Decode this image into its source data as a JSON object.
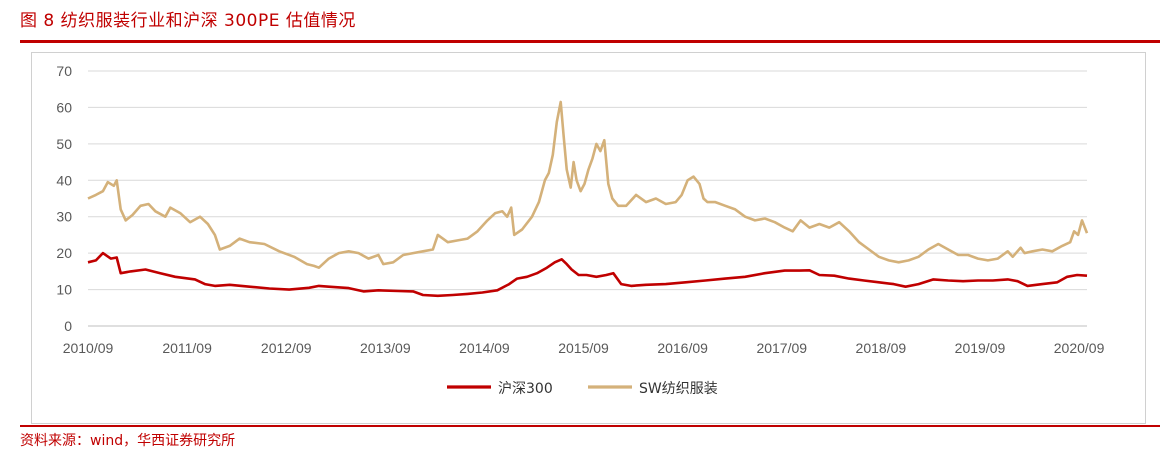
{
  "title": "图 8 纺织服装行业和沪深 300PE 估值情况",
  "source": "资料来源：wind，华西证券研究所",
  "colors": {
    "accent": "#c00000",
    "series_hs300": "#c00000",
    "series_sw": "#d4b17a",
    "grid": "#d9d9d9"
  },
  "chart_data": {
    "type": "line",
    "title": "",
    "xlabel": "",
    "ylabel": "",
    "ylim": [
      0,
      70
    ],
    "yticks": [
      0,
      10,
      20,
      30,
      40,
      50,
      60,
      70
    ],
    "xlim": [
      2010.67,
      2020.75
    ],
    "xtick_labels": [
      "2010/09",
      "2011/09",
      "2012/09",
      "2013/09",
      "2014/09",
      "2015/09",
      "2016/09",
      "2017/09",
      "2018/09",
      "2019/09",
      "2020/09"
    ],
    "xtick_values": [
      2010.67,
      2011.67,
      2012.67,
      2013.67,
      2014.67,
      2015.67,
      2016.67,
      2017.67,
      2018.67,
      2019.67,
      2020.67
    ],
    "grid": true,
    "legend_position": "bottom",
    "series": [
      {
        "name": "沪深300",
        "color": "#c00000",
        "points": [
          [
            2010.67,
            17.5
          ],
          [
            2010.75,
            18
          ],
          [
            2010.82,
            20
          ],
          [
            2010.9,
            18.5
          ],
          [
            2010.96,
            18.8
          ],
          [
            2011.0,
            14.5
          ],
          [
            2011.1,
            15
          ],
          [
            2011.25,
            15.5
          ],
          [
            2011.4,
            14.5
          ],
          [
            2011.55,
            13.5
          ],
          [
            2011.75,
            12.8
          ],
          [
            2011.85,
            11.5
          ],
          [
            2011.95,
            11
          ],
          [
            2012.1,
            11.3
          ],
          [
            2012.3,
            10.8
          ],
          [
            2012.5,
            10.3
          ],
          [
            2012.7,
            10
          ],
          [
            2012.9,
            10.5
          ],
          [
            2013.0,
            11
          ],
          [
            2013.1,
            10.8
          ],
          [
            2013.3,
            10.4
          ],
          [
            2013.45,
            9.5
          ],
          [
            2013.6,
            9.8
          ],
          [
            2013.8,
            9.6
          ],
          [
            2013.95,
            9.5
          ],
          [
            2014.05,
            8.5
          ],
          [
            2014.2,
            8.3
          ],
          [
            2014.35,
            8.5
          ],
          [
            2014.5,
            8.8
          ],
          [
            2014.65,
            9.2
          ],
          [
            2014.8,
            9.8
          ],
          [
            2014.92,
            11.5
          ],
          [
            2015.0,
            13
          ],
          [
            2015.1,
            13.5
          ],
          [
            2015.2,
            14.5
          ],
          [
            2015.3,
            16
          ],
          [
            2015.38,
            17.5
          ],
          [
            2015.45,
            18.3
          ],
          [
            2015.5,
            17
          ],
          [
            2015.55,
            15.5
          ],
          [
            2015.62,
            14
          ],
          [
            2015.7,
            14
          ],
          [
            2015.8,
            13.5
          ],
          [
            2015.9,
            14
          ],
          [
            2015.97,
            14.5
          ],
          [
            2016.05,
            11.5
          ],
          [
            2016.15,
            11
          ],
          [
            2016.3,
            11.3
          ],
          [
            2016.5,
            11.5
          ],
          [
            2016.7,
            12
          ],
          [
            2016.9,
            12.5
          ],
          [
            2017.1,
            13
          ],
          [
            2017.3,
            13.5
          ],
          [
            2017.5,
            14.5
          ],
          [
            2017.7,
            15.2
          ],
          [
            2017.85,
            15.2
          ],
          [
            2017.95,
            15.3
          ],
          [
            2018.05,
            14
          ],
          [
            2018.2,
            13.8
          ],
          [
            2018.35,
            13
          ],
          [
            2018.5,
            12.5
          ],
          [
            2018.65,
            12
          ],
          [
            2018.8,
            11.5
          ],
          [
            2018.92,
            10.8
          ],
          [
            2019.05,
            11.5
          ],
          [
            2019.2,
            12.8
          ],
          [
            2019.35,
            12.5
          ],
          [
            2019.5,
            12.3
          ],
          [
            2019.65,
            12.5
          ],
          [
            2019.8,
            12.5
          ],
          [
            2019.95,
            12.8
          ],
          [
            2020.05,
            12.3
          ],
          [
            2020.15,
            11
          ],
          [
            2020.3,
            11.5
          ],
          [
            2020.45,
            12
          ],
          [
            2020.55,
            13.5
          ],
          [
            2020.65,
            14
          ],
          [
            2020.75,
            13.8
          ]
        ]
      },
      {
        "name": "SW纺织服装",
        "color": "#d4b17a",
        "points": [
          [
            2010.67,
            35
          ],
          [
            2010.75,
            36
          ],
          [
            2010.82,
            37
          ],
          [
            2010.87,
            39.5
          ],
          [
            2010.93,
            38.5
          ],
          [
            2010.96,
            40
          ],
          [
            2011.0,
            32
          ],
          [
            2011.05,
            29
          ],
          [
            2011.12,
            30.5
          ],
          [
            2011.2,
            33
          ],
          [
            2011.28,
            33.5
          ],
          [
            2011.35,
            31.5
          ],
          [
            2011.45,
            30
          ],
          [
            2011.5,
            32.5
          ],
          [
            2011.6,
            31
          ],
          [
            2011.7,
            28.5
          ],
          [
            2011.8,
            30
          ],
          [
            2011.88,
            28
          ],
          [
            2011.95,
            25
          ],
          [
            2012.0,
            21
          ],
          [
            2012.1,
            22
          ],
          [
            2012.2,
            24
          ],
          [
            2012.3,
            23
          ],
          [
            2012.45,
            22.5
          ],
          [
            2012.6,
            20.5
          ],
          [
            2012.75,
            19
          ],
          [
            2012.88,
            17
          ],
          [
            2012.95,
            16.5
          ],
          [
            2013.0,
            16
          ],
          [
            2013.1,
            18.5
          ],
          [
            2013.2,
            20
          ],
          [
            2013.3,
            20.5
          ],
          [
            2013.4,
            20
          ],
          [
            2013.5,
            18.5
          ],
          [
            2013.6,
            19.5
          ],
          [
            2013.65,
            17
          ],
          [
            2013.75,
            17.5
          ],
          [
            2013.85,
            19.5
          ],
          [
            2013.95,
            20
          ],
          [
            2014.05,
            20.5
          ],
          [
            2014.15,
            21
          ],
          [
            2014.2,
            25
          ],
          [
            2014.3,
            23
          ],
          [
            2014.4,
            23.5
          ],
          [
            2014.5,
            24
          ],
          [
            2014.6,
            26
          ],
          [
            2014.7,
            29
          ],
          [
            2014.78,
            31
          ],
          [
            2014.85,
            31.5
          ],
          [
            2014.9,
            30
          ],
          [
            2014.94,
            32.5
          ],
          [
            2014.97,
            25
          ],
          [
            2015.05,
            26.5
          ],
          [
            2015.15,
            30
          ],
          [
            2015.22,
            34
          ],
          [
            2015.28,
            40
          ],
          [
            2015.32,
            42
          ],
          [
            2015.36,
            47
          ],
          [
            2015.4,
            56
          ],
          [
            2015.44,
            61.5
          ],
          [
            2015.47,
            52
          ],
          [
            2015.5,
            43
          ],
          [
            2015.54,
            38
          ],
          [
            2015.57,
            45
          ],
          [
            2015.6,
            40
          ],
          [
            2015.64,
            37
          ],
          [
            2015.68,
            39
          ],
          [
            2015.72,
            43
          ],
          [
            2015.76,
            46
          ],
          [
            2015.8,
            50
          ],
          [
            2015.84,
            48
          ],
          [
            2015.88,
            51
          ],
          [
            2015.92,
            39
          ],
          [
            2015.96,
            35
          ],
          [
            2016.02,
            33
          ],
          [
            2016.1,
            33
          ],
          [
            2016.2,
            36
          ],
          [
            2016.3,
            34
          ],
          [
            2016.4,
            35
          ],
          [
            2016.5,
            33.5
          ],
          [
            2016.6,
            34
          ],
          [
            2016.66,
            36
          ],
          [
            2016.72,
            40
          ],
          [
            2016.78,
            41
          ],
          [
            2016.84,
            39
          ],
          [
            2016.88,
            35
          ],
          [
            2016.92,
            34
          ],
          [
            2017.0,
            34
          ],
          [
            2017.1,
            33
          ],
          [
            2017.2,
            32
          ],
          [
            2017.3,
            30
          ],
          [
            2017.4,
            29
          ],
          [
            2017.5,
            29.5
          ],
          [
            2017.6,
            28.5
          ],
          [
            2017.7,
            27
          ],
          [
            2017.78,
            26
          ],
          [
            2017.86,
            29
          ],
          [
            2017.95,
            27
          ],
          [
            2018.05,
            28
          ],
          [
            2018.15,
            27
          ],
          [
            2018.25,
            28.5
          ],
          [
            2018.35,
            26
          ],
          [
            2018.45,
            23
          ],
          [
            2018.55,
            21
          ],
          [
            2018.65,
            19
          ],
          [
            2018.75,
            18
          ],
          [
            2018.85,
            17.5
          ],
          [
            2018.95,
            18
          ],
          [
            2019.05,
            19
          ],
          [
            2019.15,
            21
          ],
          [
            2019.25,
            22.5
          ],
          [
            2019.35,
            21
          ],
          [
            2019.45,
            19.5
          ],
          [
            2019.55,
            19.5
          ],
          [
            2019.65,
            18.5
          ],
          [
            2019.75,
            18
          ],
          [
            2019.85,
            18.5
          ],
          [
            2019.95,
            20.5
          ],
          [
            2020.0,
            19
          ],
          [
            2020.08,
            21.5
          ],
          [
            2020.12,
            20
          ],
          [
            2020.2,
            20.5
          ],
          [
            2020.3,
            21
          ],
          [
            2020.4,
            20.5
          ],
          [
            2020.5,
            22
          ],
          [
            2020.58,
            23
          ],
          [
            2020.62,
            26
          ],
          [
            2020.66,
            25
          ],
          [
            2020.7,
            29
          ],
          [
            2020.75,
            25.5
          ]
        ]
      }
    ]
  }
}
